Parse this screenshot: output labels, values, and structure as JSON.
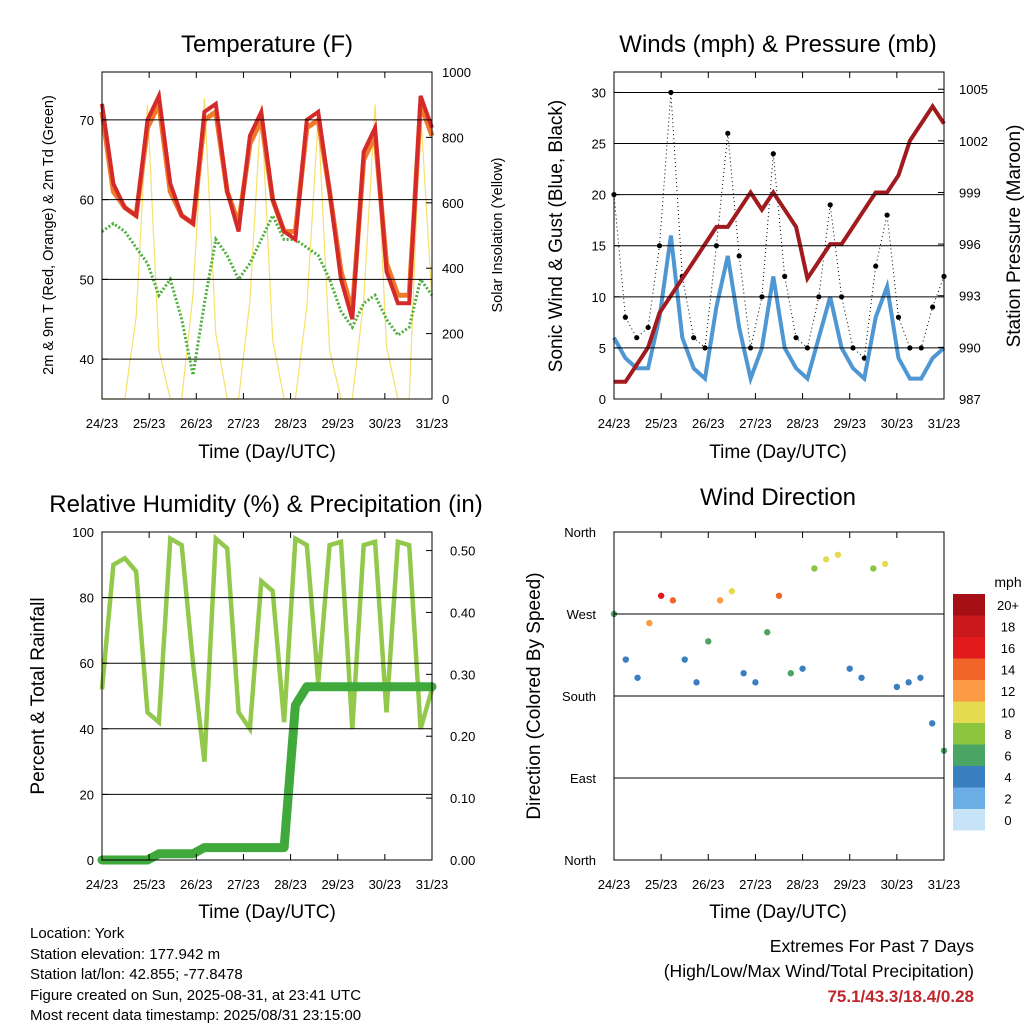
{
  "x_ticks": [
    "24/23",
    "25/23",
    "26/23",
    "27/23",
    "28/23",
    "29/23",
    "30/23",
    "31/23"
  ],
  "panels": {
    "temp": {
      "title": "Temperature (F)",
      "xlabel": "Time (Day/UTC)",
      "ylabel_left": "2m & 9m T (Red, Orange) & 2m Td (Green)",
      "ylabel_right": "Solar Insolation (Yellow)",
      "yticks_left": [
        "40",
        "50",
        "60",
        "70"
      ],
      "yticks_right": [
        "0",
        "200",
        "400",
        "600",
        "800",
        "1000"
      ]
    },
    "wind": {
      "title": "Winds (mph) & Pressure (mb)",
      "xlabel": "Time (Day/UTC)",
      "ylabel_left": "Sonic Wind & Gust (Blue, Black)",
      "ylabel_right": "Station Pressure (Maroon)",
      "yticks_left": [
        "0",
        "5",
        "10",
        "15",
        "20",
        "25",
        "30"
      ],
      "yticks_right": [
        "987",
        "990",
        "993",
        "996",
        "999",
        "1002",
        "1005"
      ]
    },
    "rh": {
      "title": "Relative Humidity (%) & Precipitation (in)",
      "xlabel": "Time (Day/UTC)",
      "ylabel_left": "Percent & Total Rainfall",
      "yticks_left": [
        "0",
        "20",
        "40",
        "60",
        "80",
        "100"
      ],
      "yticks_right": [
        "0.00",
        "0.10",
        "0.20",
        "0.30",
        "0.40",
        "0.50"
      ]
    },
    "dir": {
      "title": "Wind Direction",
      "xlabel": "Time (Day/UTC)",
      "ylabel_left": "Direction (Colored By Speed)",
      "yticks_left": [
        "North",
        "East",
        "South",
        "West",
        "North"
      ],
      "legend_title": "mph",
      "legend_labels": [
        "20+",
        "18",
        "16",
        "14",
        "12",
        "10",
        "8",
        "6",
        "4",
        "2",
        "0"
      ],
      "legend_colors": [
        "#a50f15",
        "#cb181d",
        "#e31a1c",
        "#f16529",
        "#fd9a44",
        "#e5db51",
        "#8cc63f",
        "#4aa564",
        "#3a7fbf",
        "#6baee6",
        "#c6e3f7"
      ]
    }
  },
  "chart_data": [
    {
      "type": "line",
      "title": "Temperature (F)",
      "xlabel": "Time (Day/UTC)",
      "ylabel": "2m & 9m T (Red, Orange) & 2m Td (Green)",
      "ylabel_right": "Solar Insolation (Yellow)",
      "x": [
        "24/23",
        "25/00",
        "25/06",
        "25/12",
        "25/18",
        "26/00",
        "26/06",
        "26/12",
        "26/18",
        "27/00",
        "27/06",
        "27/12",
        "27/18",
        "28/00",
        "28/06",
        "28/12",
        "28/18",
        "29/00",
        "29/06",
        "29/12",
        "29/18",
        "30/00",
        "30/06",
        "30/12",
        "30/18",
        "31/00",
        "31/06",
        "31/12",
        "31/18",
        "31/23"
      ],
      "xlim": [
        "24/23",
        "31/23"
      ],
      "ylim": [
        35,
        76
      ],
      "ylim_right": [
        0,
        1000
      ],
      "series": [
        {
          "name": "2m T",
          "color": "#d42a2a",
          "values": [
            72,
            62,
            59,
            58,
            70,
            73,
            62,
            58,
            57,
            71,
            72,
            61,
            56,
            68,
            71,
            60,
            56,
            55,
            70,
            71,
            61,
            50,
            45,
            66,
            69,
            51,
            47,
            47,
            73,
            69
          ]
        },
        {
          "name": "9m T",
          "color": "#f07a2a",
          "values": [
            71,
            61,
            59,
            58,
            69,
            72,
            61,
            58,
            57,
            70,
            71,
            61,
            57,
            67,
            70,
            60,
            56,
            56,
            69,
            70,
            61,
            51,
            46,
            65,
            68,
            52,
            48,
            48,
            72,
            68
          ]
        },
        {
          "name": "2m Td",
          "color": "#4caf3c",
          "values": [
            56,
            57,
            56,
            54,
            52,
            48,
            50,
            45,
            38,
            47,
            55,
            53,
            50,
            52,
            55,
            58,
            55,
            55,
            54,
            53,
            50,
            46,
            44,
            47,
            48,
            45,
            43,
            44,
            50,
            48
          ]
        },
        {
          "name": "Solar Insolation",
          "axis": "right",
          "color": "#f6df6a",
          "values": [
            0,
            0,
            0,
            250,
            900,
            150,
            0,
            0,
            320,
            920,
            200,
            0,
            0,
            300,
            900,
            180,
            0,
            0,
            280,
            860,
            150,
            0,
            0,
            300,
            900,
            160,
            0,
            0,
            880,
            300
          ]
        }
      ]
    },
    {
      "type": "line",
      "title": "Winds (mph) & Pressure (mb)",
      "xlabel": "Time (Day/UTC)",
      "ylabel": "Sonic Wind & Gust (Blue, Black)",
      "ylabel_right": "Station Pressure (Maroon)",
      "x": [
        "24/23",
        "25/00",
        "25/06",
        "25/12",
        "25/18",
        "26/00",
        "26/06",
        "26/12",
        "26/18",
        "27/00",
        "27/06",
        "27/12",
        "27/18",
        "28/00",
        "28/06",
        "28/12",
        "28/18",
        "29/00",
        "29/06",
        "29/12",
        "29/18",
        "30/00",
        "30/06",
        "30/12",
        "30/18",
        "31/00",
        "31/06",
        "31/12",
        "31/18",
        "31/23"
      ],
      "ylim": [
        0,
        32
      ],
      "ylim_right": [
        987,
        1006
      ],
      "series": [
        {
          "name": "Sonic Wind",
          "color": "#4f97d3",
          "values": [
            6,
            4,
            3,
            3,
            8,
            16,
            6,
            3,
            2,
            9,
            14,
            7,
            2,
            5,
            12,
            5,
            3,
            2,
            6,
            10,
            5,
            3,
            2,
            8,
            11,
            4,
            2,
            2,
            4,
            5
          ]
        },
        {
          "name": "Gust",
          "color": "#000000",
          "values": [
            20,
            8,
            6,
            7,
            15,
            30,
            12,
            6,
            5,
            15,
            26,
            14,
            5,
            10,
            24,
            12,
            6,
            5,
            10,
            19,
            10,
            5,
            4,
            13,
            18,
            8,
            5,
            5,
            9,
            12
          ]
        },
        {
          "name": "Station Pressure",
          "axis": "right",
          "color": "#a01a1e",
          "values": [
            988,
            988,
            989,
            990,
            992,
            993,
            994,
            995,
            996,
            997,
            997,
            998,
            999,
            998,
            999,
            998,
            997,
            994,
            995,
            996,
            996,
            997,
            998,
            999,
            999,
            1000,
            1002,
            1003,
            1004,
            1003
          ]
        }
      ]
    },
    {
      "type": "line",
      "title": "Relative Humidity (%) & Precipitation (in)",
      "xlabel": "Time (Day/UTC)",
      "ylabel": "Percent & Total Rainfall",
      "x": [
        "24/23",
        "25/00",
        "25/06",
        "25/12",
        "25/18",
        "26/00",
        "26/06",
        "26/12",
        "26/18",
        "27/00",
        "27/06",
        "27/12",
        "27/18",
        "28/00",
        "28/06",
        "28/12",
        "28/18",
        "29/00",
        "29/06",
        "29/12",
        "29/18",
        "30/00",
        "30/06",
        "30/12",
        "30/18",
        "31/00",
        "31/06",
        "31/12",
        "31/18",
        "31/23"
      ],
      "ylim": [
        0,
        100
      ],
      "ylim_right": [
        0,
        0.53
      ],
      "series": [
        {
          "name": "Relative Humidity",
          "color": "#92c94c",
          "values": [
            52,
            90,
            92,
            88,
            45,
            42,
            98,
            96,
            60,
            30,
            98,
            95,
            45,
            40,
            85,
            82,
            42,
            98,
            96,
            54,
            96,
            97,
            40,
            96,
            97,
            45,
            97,
            96,
            40,
            52
          ]
        },
        {
          "name": "Total Precipitation",
          "axis": "right",
          "color": "#3fa93c",
          "values": [
            0,
            0,
            0,
            0,
            0,
            0.01,
            0.01,
            0.01,
            0.01,
            0.02,
            0.02,
            0.02,
            0.02,
            0.02,
            0.02,
            0.02,
            0.02,
            0.25,
            0.28,
            0.28,
            0.28,
            0.28,
            0.28,
            0.28,
            0.28,
            0.28,
            0.28,
            0.28,
            0.28,
            0.28
          ]
        }
      ]
    },
    {
      "type": "scatter",
      "title": "Wind Direction",
      "xlabel": "Time (Day/UTC)",
      "ylabel": "Direction (Colored By Speed)",
      "y_categories": [
        "North",
        "East",
        "South",
        "West",
        "North"
      ],
      "ylim_degrees": [
        0,
        360
      ],
      "colorbar_units": "mph",
      "x": [
        "24/23",
        "25/03",
        "25/09",
        "25/15",
        "25/21",
        "26/03",
        "26/09",
        "26/15",
        "26/21",
        "27/03",
        "27/09",
        "27/15",
        "27/21",
        "28/03",
        "28/09",
        "28/15",
        "28/21",
        "29/03",
        "29/09",
        "29/15",
        "29/21",
        "30/03",
        "30/09",
        "30/15",
        "30/21",
        "31/03",
        "31/09",
        "31/15",
        "31/21"
      ],
      "series": [
        {
          "name": "direction_deg",
          "values": [
            270,
            220,
            200,
            260,
            290,
            285,
            220,
            195,
            240,
            285,
            295,
            205,
            195,
            250,
            290,
            205,
            210,
            320,
            330,
            335,
            210,
            200,
            320,
            325,
            190,
            195,
            200,
            150,
            120
          ]
        },
        {
          "name": "speed_mph",
          "values": [
            6,
            4,
            3,
            12,
            15,
            14,
            4,
            3,
            6,
            12,
            10,
            4,
            3,
            6,
            13,
            5,
            4,
            8,
            9,
            10,
            4,
            3,
            8,
            9,
            4,
            3,
            4,
            3,
            6
          ]
        }
      ]
    }
  ],
  "footer": {
    "location": "Location: York",
    "elevation": "Station elevation: 177.942 m",
    "latlon": "Station lat/lon: 42.855; -77.8478",
    "created": "Figure created on Sun, 2025-08-31, at 23:41 UTC",
    "recent": "Most recent data timestamp: 2025/08/31 23:15:00"
  },
  "extremes": {
    "title": "Extremes For Past 7 Days",
    "subtitle": "(High/Low/Max Wind/Total Precipitation)",
    "values": "75.1/43.3/18.4/0.28"
  }
}
